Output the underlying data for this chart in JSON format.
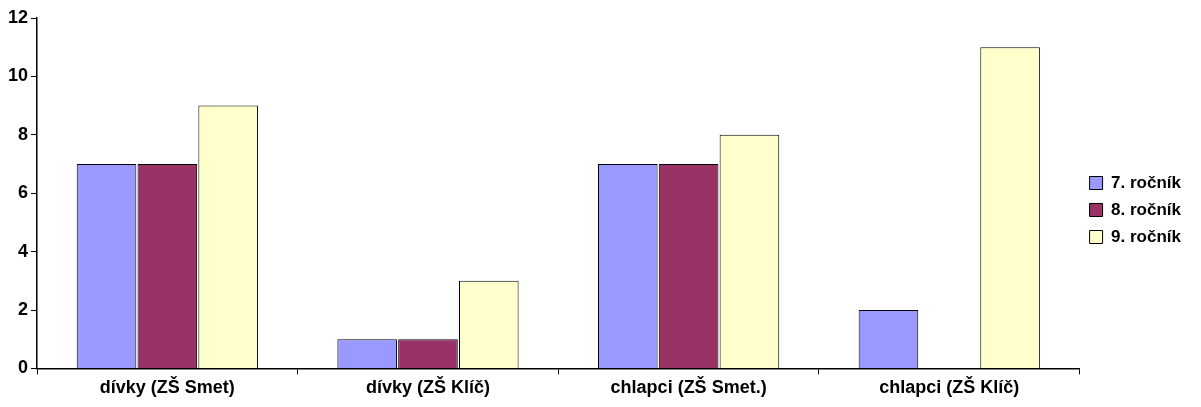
{
  "chart_data": {
    "type": "bar",
    "categories": [
      "dívky (ZŠ Smet)",
      "dívky (ZŠ Klíč)",
      "chlapci (ZŠ Smet.)",
      "chlapci (ZŠ Klíč)"
    ],
    "series": [
      {
        "name": "7. ročník",
        "color": "#9999ff",
        "values": [
          7,
          1,
          7,
          2
        ]
      },
      {
        "name": "8. ročník",
        "color": "#993366",
        "values": [
          7,
          1,
          7,
          0
        ]
      },
      {
        "name": "9. ročník",
        "color": "#ffffcc",
        "values": [
          9,
          3,
          8,
          11
        ]
      }
    ],
    "ylim": [
      0,
      12
    ],
    "yticks": [
      0,
      2,
      4,
      6,
      8,
      10,
      12
    ],
    "grid": false,
    "legend": "right"
  }
}
